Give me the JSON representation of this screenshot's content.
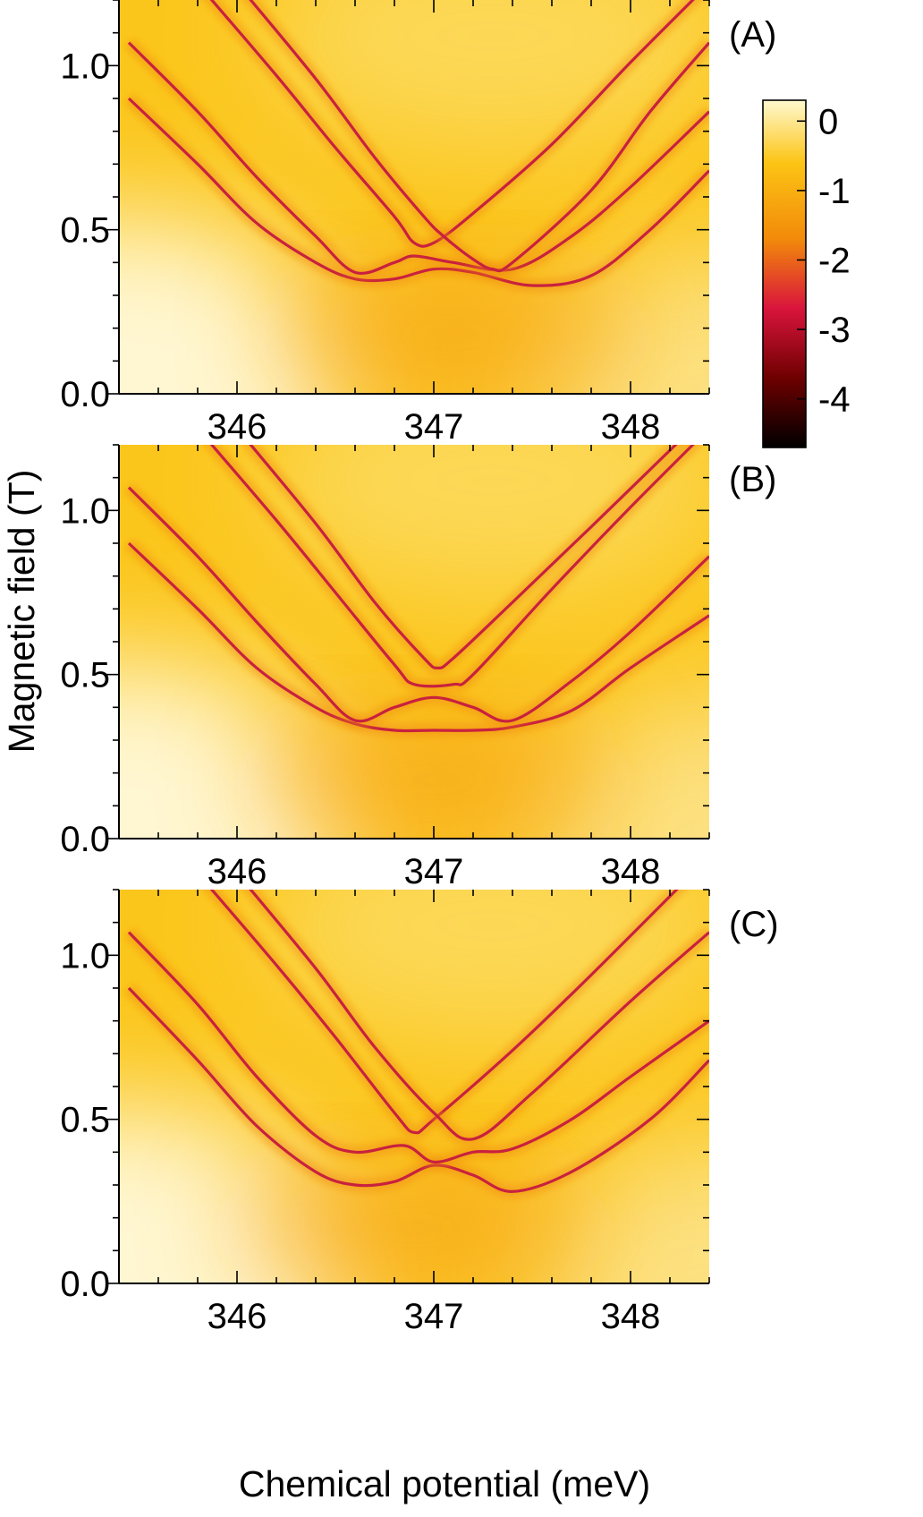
{
  "chart_data": {
    "type": "heatmap",
    "shared": {
      "xlabel": "Chemical potential (meV)",
      "ylabel": "Magnetic field (T)",
      "xlim": [
        345.4,
        348.4
      ],
      "ylim": [
        0.0,
        1.2
      ],
      "xticks": [
        346,
        347,
        348
      ],
      "xtick_labels": [
        "346",
        "347",
        "348"
      ],
      "yticks": [
        0.0,
        0.5,
        1.0
      ],
      "ytick_labels": [
        "0.0",
        "0.5",
        "1.0"
      ]
    },
    "colorbar": {
      "range": [
        -4.7,
        0.3
      ],
      "ticks": [
        0,
        -1,
        -2,
        -3,
        -4
      ],
      "tick_labels": [
        "0",
        "-1",
        "-2",
        "-3",
        "-4"
      ],
      "colors": [
        "#000000",
        "#6e0000",
        "#d9143c",
        "#f28a0a",
        "#fcc415",
        "#fff9cf"
      ]
    },
    "panels": [
      {
        "label": "(A)",
        "show_x_tick_labels": true,
        "background_min_point": [
          347.1,
          0.18
        ],
        "curves": [
          {
            "name": "branch-1",
            "points": [
              [
                345.45,
                0.9
              ],
              [
                345.8,
                0.7
              ],
              [
                346.1,
                0.52
              ],
              [
                346.4,
                0.4
              ],
              [
                346.6,
                0.35
              ],
              [
                346.8,
                0.35
              ],
              [
                347.0,
                0.38
              ],
              [
                347.2,
                0.37
              ],
              [
                347.5,
                0.33
              ],
              [
                347.8,
                0.36
              ],
              [
                348.1,
                0.5
              ],
              [
                348.4,
                0.68
              ]
            ]
          },
          {
            "name": "branch-2",
            "points": [
              [
                345.45,
                1.07
              ],
              [
                345.8,
                0.86
              ],
              [
                346.1,
                0.66
              ],
              [
                346.4,
                0.48
              ],
              [
                346.6,
                0.37
              ],
              [
                346.8,
                0.4
              ],
              [
                346.9,
                0.42
              ],
              [
                347.1,
                0.4
              ],
              [
                347.4,
                0.38
              ],
              [
                347.7,
                0.48
              ],
              [
                348.0,
                0.63
              ],
              [
                348.4,
                0.86
              ]
            ]
          },
          {
            "name": "branch-3",
            "points": [
              [
                345.8,
                1.25
              ],
              [
                346.2,
                0.97
              ],
              [
                346.5,
                0.75
              ],
              [
                346.8,
                0.54
              ],
              [
                346.9,
                0.46
              ],
              [
                347.0,
                0.46
              ],
              [
                347.2,
                0.55
              ],
              [
                347.6,
                0.76
              ],
              [
                348.0,
                1.01
              ],
              [
                348.4,
                1.25
              ]
            ]
          },
          {
            "name": "branch-4",
            "points": [
              [
                346.0,
                1.25
              ],
              [
                346.4,
                0.96
              ],
              [
                346.7,
                0.72
              ],
              [
                346.95,
                0.54
              ],
              [
                347.05,
                0.48
              ],
              [
                347.2,
                0.41
              ],
              [
                347.3,
                0.38
              ],
              [
                347.4,
                0.4
              ],
              [
                347.8,
                0.62
              ],
              [
                348.1,
                0.86
              ],
              [
                348.4,
                1.07
              ]
            ]
          }
        ]
      },
      {
        "label": "(B)",
        "show_x_tick_labels": true,
        "background_min_point": [
          347.0,
          0.18
        ],
        "curves": [
          {
            "name": "branch-1",
            "points": [
              [
                345.45,
                0.9
              ],
              [
                345.8,
                0.7
              ],
              [
                346.1,
                0.52
              ],
              [
                346.4,
                0.4
              ],
              [
                346.6,
                0.35
              ],
              [
                346.8,
                0.33
              ],
              [
                347.0,
                0.33
              ],
              [
                347.2,
                0.33
              ],
              [
                347.4,
                0.34
              ],
              [
                347.7,
                0.39
              ],
              [
                348.0,
                0.52
              ],
              [
                348.4,
                0.68
              ]
            ]
          },
          {
            "name": "branch-2",
            "points": [
              [
                345.45,
                1.07
              ],
              [
                345.8,
                0.86
              ],
              [
                346.1,
                0.66
              ],
              [
                346.4,
                0.47
              ],
              [
                346.6,
                0.36
              ],
              [
                346.8,
                0.4
              ],
              [
                347.0,
                0.43
              ],
              [
                347.2,
                0.4
              ],
              [
                347.4,
                0.36
              ],
              [
                347.7,
                0.48
              ],
              [
                348.0,
                0.63
              ],
              [
                348.4,
                0.86
              ]
            ]
          },
          {
            "name": "branch-3",
            "points": [
              [
                345.8,
                1.25
              ],
              [
                346.2,
                0.97
              ],
              [
                346.5,
                0.75
              ],
              [
                346.8,
                0.53
              ],
              [
                346.9,
                0.47
              ],
              [
                347.1,
                0.47
              ],
              [
                347.2,
                0.5
              ],
              [
                347.6,
                0.76
              ],
              [
                348.0,
                1.01
              ],
              [
                348.4,
                1.25
              ]
            ]
          },
          {
            "name": "branch-4",
            "points": [
              [
                346.0,
                1.25
              ],
              [
                346.4,
                0.96
              ],
              [
                346.7,
                0.72
              ],
              [
                346.95,
                0.55
              ],
              [
                347.02,
                0.52
              ],
              [
                347.1,
                0.55
              ],
              [
                347.4,
                0.72
              ],
              [
                347.8,
                0.95
              ],
              [
                348.4,
                1.3
              ]
            ]
          }
        ]
      },
      {
        "label": "(C)",
        "show_x_tick_labels": true,
        "background_min_point": [
          346.9,
          0.17
        ],
        "curves": [
          {
            "name": "branch-1",
            "points": [
              [
                345.45,
                0.9
              ],
              [
                345.8,
                0.68
              ],
              [
                346.1,
                0.48
              ],
              [
                346.4,
                0.34
              ],
              [
                346.6,
                0.3
              ],
              [
                346.8,
                0.31
              ],
              [
                347.0,
                0.36
              ],
              [
                347.2,
                0.33
              ],
              [
                347.4,
                0.28
              ],
              [
                347.7,
                0.34
              ],
              [
                348.1,
                0.5
              ],
              [
                348.4,
                0.68
              ]
            ]
          },
          {
            "name": "branch-2",
            "points": [
              [
                345.45,
                1.07
              ],
              [
                345.8,
                0.85
              ],
              [
                346.1,
                0.63
              ],
              [
                346.4,
                0.45
              ],
              [
                346.6,
                0.4
              ],
              [
                346.85,
                0.42
              ],
              [
                347.0,
                0.37
              ],
              [
                347.2,
                0.4
              ],
              [
                347.4,
                0.41
              ],
              [
                347.7,
                0.5
              ],
              [
                348.0,
                0.63
              ],
              [
                348.4,
                0.8
              ]
            ]
          },
          {
            "name": "branch-3",
            "points": [
              [
                345.8,
                1.25
              ],
              [
                346.2,
                0.97
              ],
              [
                346.5,
                0.75
              ],
              [
                346.8,
                0.52
              ],
              [
                346.9,
                0.46
              ],
              [
                347.0,
                0.5
              ],
              [
                347.4,
                0.71
              ],
              [
                347.8,
                0.94
              ],
              [
                348.4,
                1.3
              ]
            ]
          },
          {
            "name": "branch-4",
            "points": [
              [
                346.0,
                1.25
              ],
              [
                346.4,
                0.96
              ],
              [
                346.7,
                0.72
              ],
              [
                347.0,
                0.52
              ],
              [
                347.2,
                0.44
              ],
              [
                347.5,
                0.58
              ],
              [
                348.0,
                0.86
              ],
              [
                348.4,
                1.07
              ]
            ]
          }
        ]
      }
    ]
  }
}
